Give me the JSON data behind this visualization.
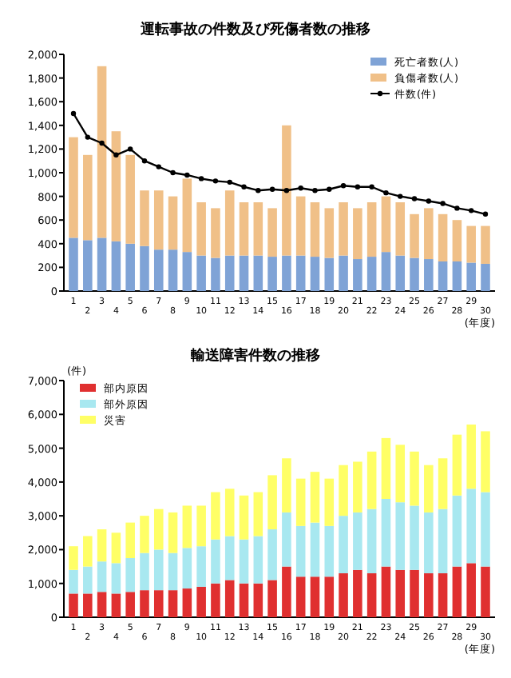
{
  "chart_data": [
    {
      "type": "bar",
      "title": "運転事故の件数及び死傷者数の推移",
      "xlabel": "(年度)",
      "stacked": true,
      "legend": "top right",
      "marker": "circle",
      "categories": [
        "1",
        "2",
        "3",
        "4",
        "5",
        "6",
        "7",
        "8",
        "9",
        "10",
        "11",
        "12",
        "13",
        "14",
        "15",
        "16",
        "17",
        "18",
        "19",
        "20",
        "21",
        "22",
        "23",
        "24",
        "25",
        "26",
        "27",
        "28",
        "29",
        "30"
      ],
      "ylim": [
        0,
        2000
      ],
      "yticks": [
        0,
        200,
        400,
        600,
        800,
        {
          "value": 1000,
          "label": "1,000"
        },
        {
          "value": 1200,
          "label": "1,200"
        },
        {
          "value": 1400,
          "label": "1,400"
        },
        {
          "value": 1600,
          "label": "1,600"
        },
        {
          "value": 1800,
          "label": "1,800"
        },
        {
          "value": 2000,
          "label": "2,000"
        }
      ],
      "series": [
        {
          "name": "死亡者数(人)",
          "color": "#7fa3d6",
          "values": [
            450,
            430,
            450,
            420,
            400,
            380,
            350,
            350,
            330,
            300,
            280,
            300,
            300,
            300,
            290,
            300,
            300,
            290,
            280,
            300,
            270,
            290,
            330,
            300,
            280,
            270,
            250,
            250,
            240,
            230
          ]
        },
        {
          "name": "負傷者数(人)",
          "color": "#f0c088",
          "values": [
            850,
            720,
            1450,
            930,
            750,
            470,
            500,
            450,
            620,
            450,
            420,
            550,
            450,
            450,
            410,
            1100,
            500,
            460,
            420,
            450,
            430,
            460,
            470,
            450,
            370,
            430,
            400,
            350,
            310,
            320
          ]
        },
        {
          "name": "件数(件)",
          "type": "line",
          "color": "#000000",
          "values": [
            1500,
            1300,
            1250,
            1150,
            1200,
            1100,
            1050,
            1000,
            980,
            950,
            930,
            920,
            880,
            850,
            860,
            850,
            870,
            850,
            860,
            890,
            880,
            880,
            830,
            800,
            780,
            760,
            740,
            700,
            680,
            650
          ]
        }
      ]
    },
    {
      "type": "bar",
      "title": "輸送障害件数の推移",
      "xlabel": "(年度)",
      "ylabel": "(件)",
      "stacked": true,
      "legend": "top left",
      "categories": [
        "1",
        "2",
        "3",
        "4",
        "5",
        "6",
        "7",
        "8",
        "9",
        "10",
        "11",
        "12",
        "13",
        "14",
        "15",
        "16",
        "17",
        "18",
        "19",
        "20",
        "21",
        "22",
        "23",
        "24",
        "25",
        "26",
        "27",
        "28",
        "29",
        "30"
      ],
      "ylim": [
        0,
        7000
      ],
      "yticks": [
        0,
        {
          "value": 1000,
          "label": "1,000"
        },
        {
          "value": 2000,
          "label": "2,000"
        },
        {
          "value": 3000,
          "label": "3,000"
        },
        {
          "value": 4000,
          "label": "4,000"
        },
        {
          "value": 5000,
          "label": "5,000"
        },
        {
          "value": 6000,
          "label": "6,000"
        },
        {
          "value": 7000,
          "label": "7,000"
        }
      ],
      "series": [
        {
          "name": "部内原因",
          "color": "#e03030",
          "values": [
            700,
            700,
            750,
            700,
            750,
            800,
            800,
            800,
            850,
            900,
            1000,
            1100,
            1000,
            1000,
            1100,
            1500,
            1200,
            1200,
            1200,
            1300,
            1400,
            1300,
            1500,
            1400,
            1400,
            1300,
            1300,
            1500,
            1600,
            1500
          ]
        },
        {
          "name": "部外原因",
          "color": "#a8e8f0",
          "values": [
            700,
            800,
            900,
            900,
            1000,
            1100,
            1200,
            1100,
            1200,
            1200,
            1300,
            1300,
            1300,
            1400,
            1500,
            1600,
            1500,
            1600,
            1500,
            1700,
            1700,
            1900,
            2000,
            2000,
            1900,
            1800,
            1900,
            2100,
            2200,
            2200
          ]
        },
        {
          "name": "災害",
          "color": "#ffff66",
          "values": [
            700,
            900,
            950,
            900,
            1050,
            1100,
            1200,
            1200,
            1250,
            1200,
            1400,
            1400,
            1300,
            1300,
            1600,
            1600,
            1400,
            1500,
            1400,
            1500,
            1500,
            1700,
            1800,
            1700,
            1600,
            1400,
            1500,
            1800,
            1900,
            1800
          ]
        }
      ]
    }
  ]
}
